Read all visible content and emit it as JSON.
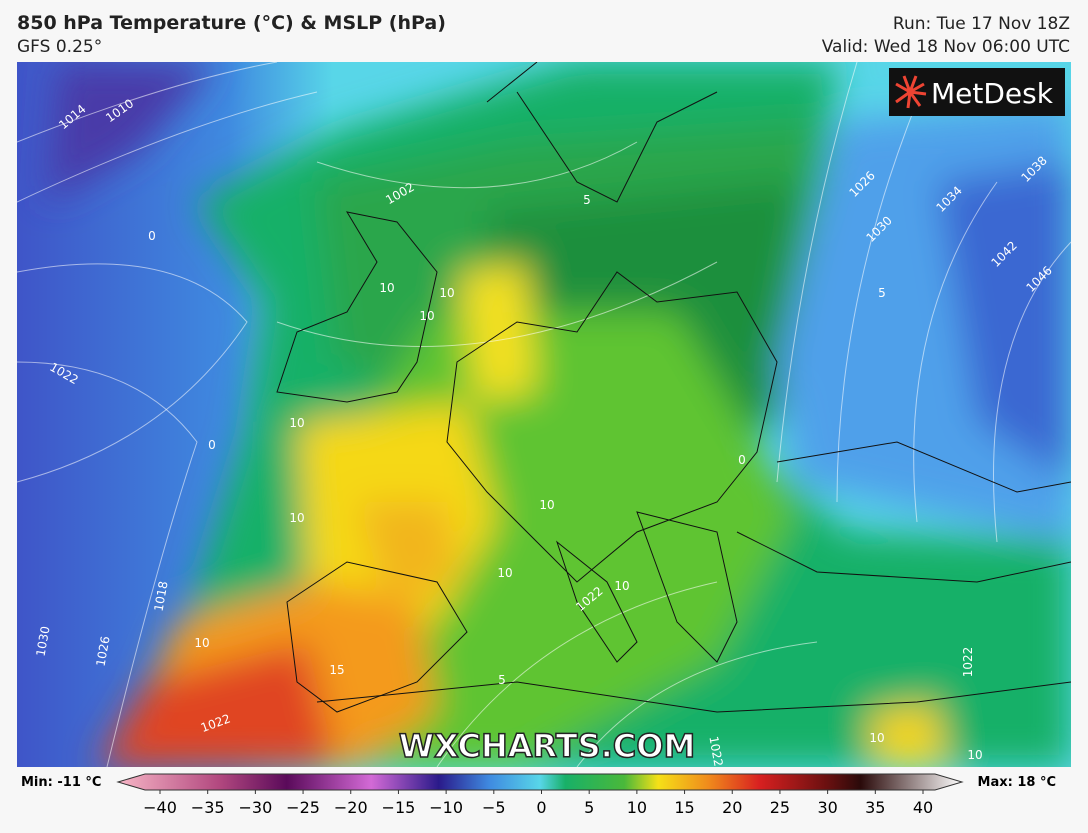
{
  "header": {
    "title": "850 hPa Temperature (°C) & MSLP (hPa)",
    "subtitle": "GFS 0.25°",
    "run": "Run: Tue 17 Nov 18Z",
    "valid": "Valid: Wed 18 Nov 06:00 UTC"
  },
  "brand": "MetDesk",
  "watermark": "WXCHARTS.COM",
  "map_labels": [
    "1014",
    "1010",
    "1002",
    "1022",
    "1026",
    "1030",
    "1034",
    "1038",
    "1042",
    "1046",
    "1018",
    "1022",
    "1030",
    "1026",
    "1022",
    "1022",
    "1022",
    "10",
    "10",
    "10",
    "10",
    "10",
    "10",
    "10",
    "10",
    "10",
    "0",
    "0",
    "0",
    "5",
    "5",
    "5",
    "15",
    "10",
    "10"
  ],
  "colorbar": {
    "min": "Min: -11 °C",
    "max": "Max: 18 °C",
    "ticks": [
      "−40",
      "−35",
      "−30",
      "−25",
      "−20",
      "−15",
      "−10",
      "−5",
      "0",
      "5",
      "10",
      "15",
      "20",
      "25",
      "30",
      "35",
      "40"
    ]
  }
}
